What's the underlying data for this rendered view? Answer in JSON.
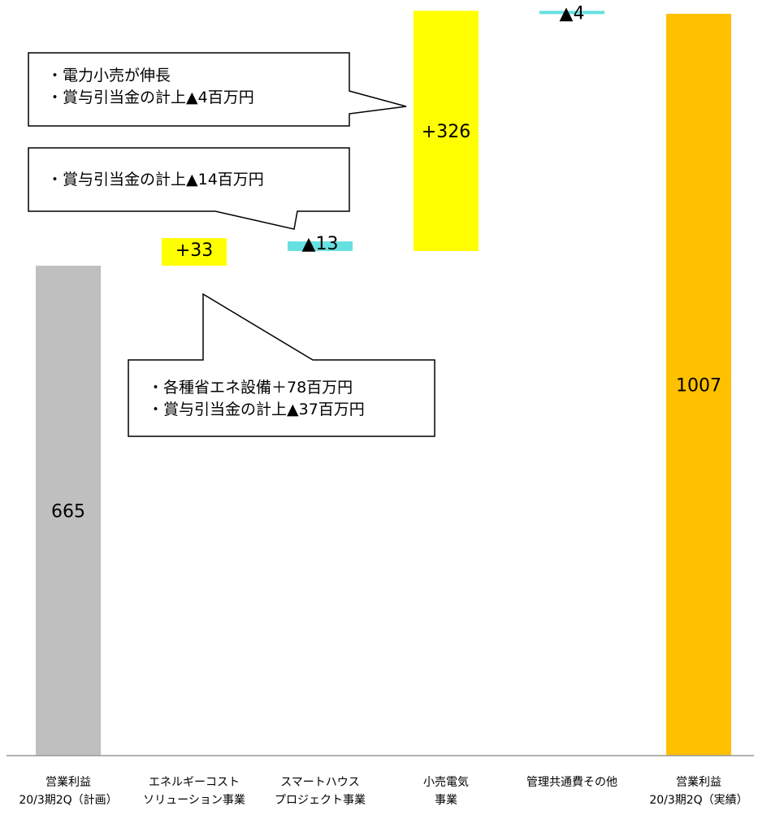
{
  "chart_data": {
    "type": "bar",
    "subtype": "waterfall",
    "categories": [
      "営業利益\n20/3期2Q（計画）",
      "エネルギーコスト\nソリューション事業",
      "スマートハウス\nプロジェクト事業",
      "小売電気\n事業",
      "管理共通費その他",
      "営業利益\n20/3期2Q（実績）"
    ],
    "values": [
      665,
      33,
      -13,
      326,
      -4,
      1007
    ],
    "value_labels": [
      "665",
      "+33",
      "▲13",
      "+326",
      "▲4",
      "1007"
    ],
    "bar_kind": [
      "total",
      "delta",
      "delta",
      "delta",
      "delta",
      "total"
    ],
    "colors": {
      "start_total": "#BFBFBF",
      "increase": "#FFFF00",
      "decrease": "#66E0E0",
      "end_total": "#FFC000"
    },
    "grid": false,
    "legend": "none"
  },
  "callouts": [
    {
      "lines": [
        "・電力小売が伸長",
        "・賞与引当金の計上▲4百万円"
      ]
    },
    {
      "lines": [
        "・賞与引当金の計上▲14百万円"
      ]
    },
    {
      "lines": [
        "・各種省エネ設備＋78百万円",
        "・賞与引当金の計上▲37百万円"
      ]
    }
  ]
}
